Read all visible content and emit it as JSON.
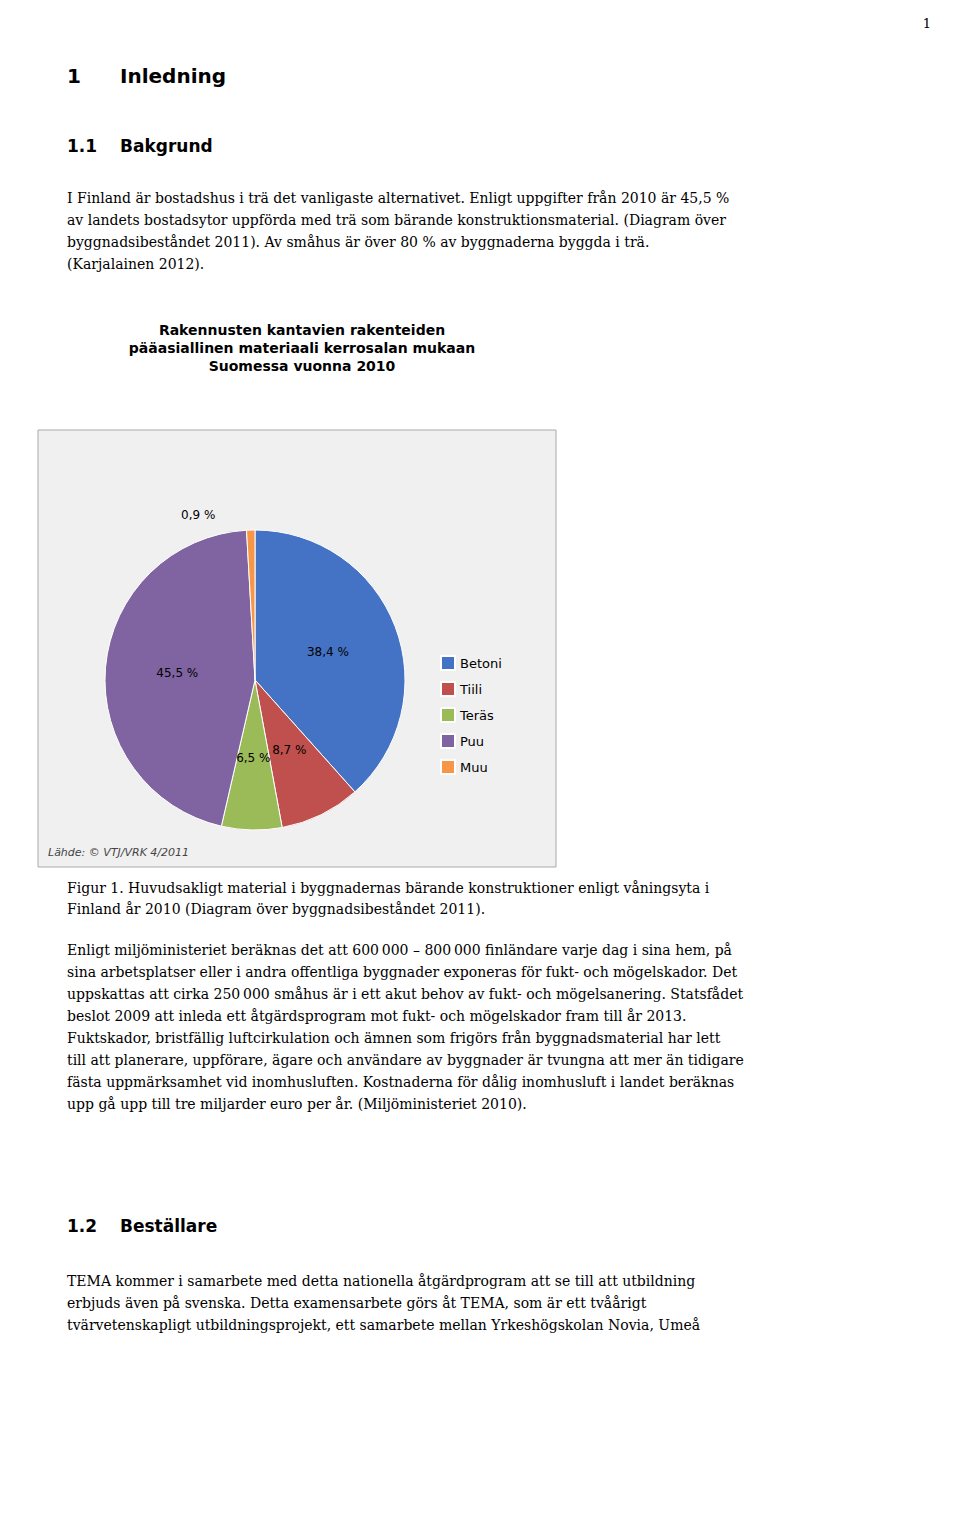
{
  "chart_data": {
    "type": "pie",
    "title": "Rakennusten kantavien rakenteiden\npääasiallinen materiaali kerrosalan mukaan\nSuomessa vuonna 2010",
    "categories": [
      "Betoni",
      "Tiili",
      "Teräs",
      "Puu",
      "Muu"
    ],
    "values": [
      38.4,
      8.7,
      6.5,
      45.5,
      0.9
    ],
    "value_labels": [
      "38,4 %",
      "8,7 %",
      "6,5 %",
      "45,5 %",
      "0,9 %"
    ],
    "colors": [
      "#4472C4",
      "#C0504D",
      "#9BBB59",
      "#8064A2",
      "#F79646"
    ],
    "data_labels": true,
    "legend": "right",
    "annotations": [
      "Lähde: © VTJ/VRK 4/2011"
    ]
  },
  "page": {
    "page_number": "1",
    "heading1": {
      "number": "1",
      "text": "Inledning"
    },
    "heading2": {
      "number": "1.1",
      "text": "Bakgrund"
    },
    "body1": "I Finland är bostadshus i trä det vanligaste alternativet. Enligt uppgifter från 2010 är 45,5 %\nav landets bostadsytor uppförda med trä som bärande konstruktionsmaterial. (Diagram över\nbyggnadsibeståndet 2011). Av småhus är över 80 % av byggnaderna byggda i trä.\n(Karjalainen 2012).",
    "caption": "Figur 1. Huvudsakligt material i byggnadernas bärande konstruktioner enligt våningsyta i\nFinland år 2010 (Diagram över byggnadsibeståndet 2011).",
    "body2": "Enligt miljöministeriet beräknas det att 600 000 – 800 000 finländare varje dag i sina hem, på\nsina arbetsplatser eller i andra offentliga byggnader exponeras för fukt- och mögelskador. Det\nuppskattas att cirka 250 000 småhus är i ett akut behov av fukt- och mögelsanering. Statsfådet\nbeslot 2009 att inleda ett åtgärdsprogram mot fukt- och mögelskador fram till år 2013.\nFuktskador, bristfällig luftcirkulation och ämnen som frigörs från byggnadsmaterial har lett\ntill att planerare, uppförare, ägare och användare av byggnader är tvungna att mer än tidigare\nfästa uppmärksamhet vid inomhusluften. Kostnaderna för dålig inomhusluft i landet beräknas\nupp gå upp till tre miljarder euro per år. (Miljöministeriet 2010).",
    "heading3": {
      "number": "1.2",
      "text": "Beställare"
    },
    "body3": "TEMA kommer i samarbete med detta nationella åtgärdprogram att se till att utbildning\nerbjuds även på svenska. Detta examensarbete görs åt TEMA, som är ett tvåårigt\ntvärvetenskapligt utbildningsprojekt, ett samarbete mellan Yrkeshögskolan Novia, Umeå"
  }
}
